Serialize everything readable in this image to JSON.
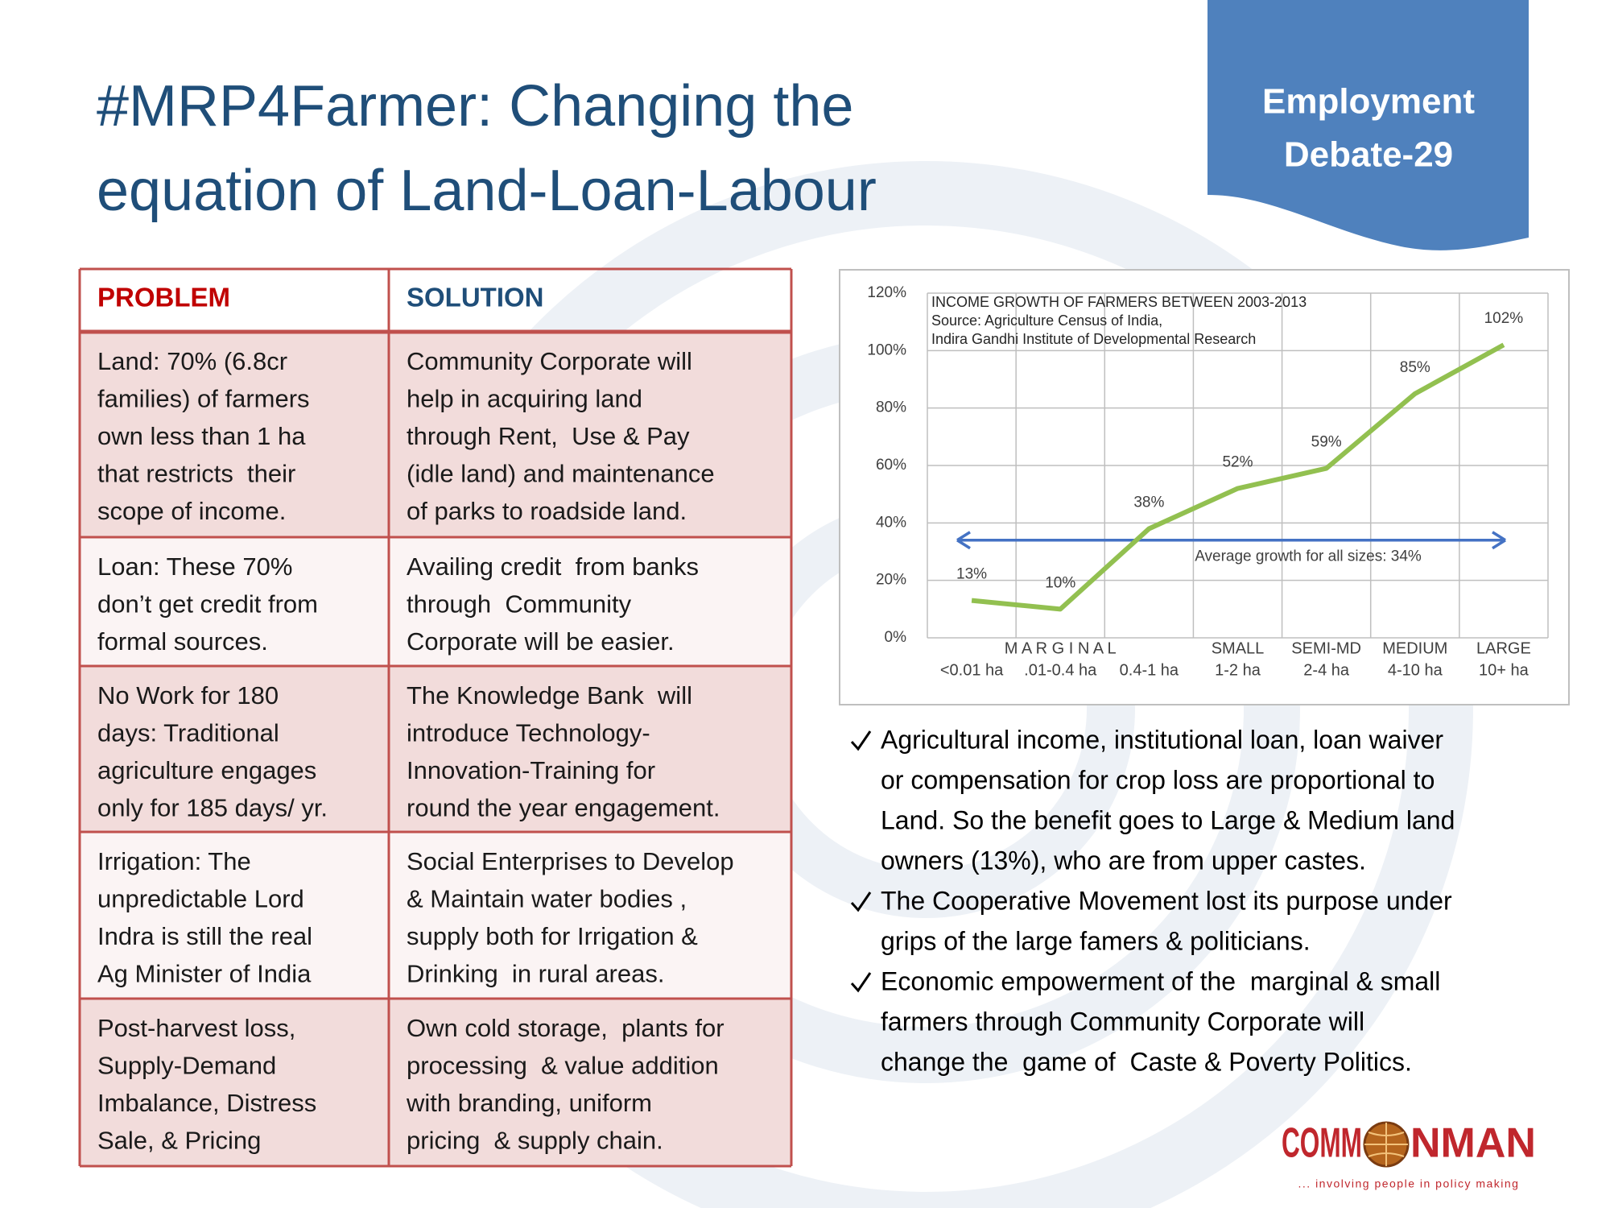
{
  "header": {
    "title": [
      "#MRP4Farmer: Changing the",
      "equation of Land-Loan-Labour"
    ],
    "badge": [
      "Employment",
      "Debate-29"
    ]
  },
  "table": {
    "headers": [
      "PROBLEM",
      "SOLUTION"
    ],
    "rows": [
      [
        [
          "Land: 70% (6.8cr",
          "families) of farmers",
          "own less than 1 ha",
          "that restricts  their",
          "scope of income."
        ],
        [
          "Community Corporate will",
          "help in acquiring land",
          "through Rent,  Use & Pay",
          "(idle land) and maintenance",
          "of parks to roadside land."
        ]
      ],
      [
        [
          "Loan: These 70%",
          "don’t get credit from",
          "formal sources."
        ],
        [
          "Availing credit  from banks",
          "through  Community",
          "Corporate will be easier."
        ]
      ],
      [
        [
          "No Work for 180",
          "days: Traditional",
          "agriculture engages",
          "only for 185 days/ yr."
        ],
        [
          "The Knowledge Bank  will",
          "introduce Technology-",
          "Innovation-Training for",
          "round the year engagement."
        ]
      ],
      [
        [
          "Irrigation: The",
          "unpredictable Lord",
          "Indra is still the real",
          "Ag Minister of India"
        ],
        [
          "Social Enterprises to Develop",
          "& Maintain water bodies ,",
          "supply both for Irrigation &",
          "Drinking  in rural areas."
        ]
      ],
      [
        [
          "Post-harvest loss,",
          "Supply-Demand",
          "Imbalance, Distress",
          "Sale, & Pricing"
        ],
        [
          "Own cold storage,  plants for",
          "processing  & value addition",
          "with branding, uniform",
          "pricing  & supply chain."
        ]
      ]
    ]
  },
  "chart_data": {
    "type": "line",
    "title": [
      "INCOME GROWTH OF FARMERS BETWEEN 2003-2013",
      "Source: Agriculture Census of India,",
      "Indira Gandhi Institute of Developmental Research"
    ],
    "categories": [
      "<0.01 ha",
      ".01-0.4 ha",
      "0.4-1 ha",
      "1-2 ha",
      "2-4 ha",
      "4-10 ha",
      "10+ ha"
    ],
    "category_groups": [
      "M A R G I N A L",
      null,
      null,
      "SMALL",
      "SEMI-MD",
      "MEDIUM",
      "LARGE"
    ],
    "values": [
      13,
      10,
      38,
      52,
      59,
      85,
      102
    ],
    "value_labels": [
      "13%",
      "10%",
      "38%",
      "52%",
      "59%",
      "85%",
      "102%"
    ],
    "color": "#92c050",
    "ylim": [
      0,
      120
    ],
    "yticks": [
      {
        "value": 0,
        "label": "0%"
      },
      {
        "value": 20,
        "label": "20%"
      },
      {
        "value": 40,
        "label": "40%"
      },
      {
        "value": 60,
        "label": "60%"
      },
      {
        "value": 80,
        "label": "80%"
      },
      {
        "value": 100,
        "label": "100%"
      },
      {
        "value": 120,
        "label": "120%"
      }
    ],
    "grid": true,
    "average": {
      "value": 34,
      "label": "Average growth for all sizes: 34%",
      "color": "#4472c4"
    }
  },
  "bullets": [
    [
      "Agricultural income, institutional loan, loan waiver",
      "or compensation for crop loss are proportional to",
      "Land. So the benefit goes to Large & Medium land",
      "owners (13%), who are from upper castes."
    ],
    [
      "The Cooperative Movement lost its purpose under",
      "grips of the large famers & politicians."
    ],
    [
      "Economic empowerment of the  marginal & small",
      "farmers through Community Corporate will",
      "change the  game of  Caste & Poverty Politics."
    ]
  ],
  "logo": {
    "left": "COMM",
    "right": "NMAN",
    "tagline": "... involving people in policy making"
  }
}
